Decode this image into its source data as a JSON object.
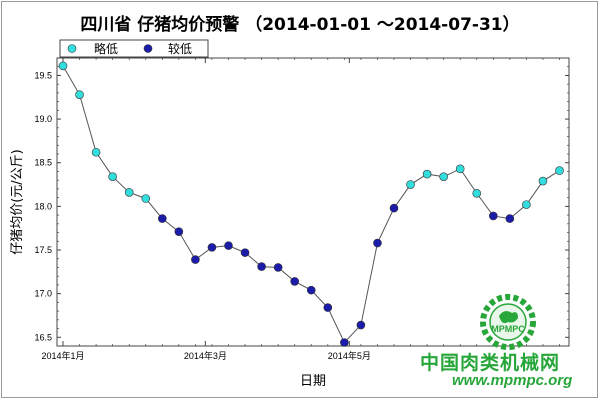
{
  "title": "四川省 仔猪均价预警 （2014-01-01 ～2014-07-31）",
  "watermark": {
    "text": "中国肉类机械网",
    "url": "www.mpmpc.org",
    "logo_text": "MPMPC",
    "color": "#27a63a"
  },
  "chart_data": {
    "type": "scatter",
    "title": "四川省 仔猪均价预警 （2014-01-01 ～2014-07-31）",
    "xlabel": "日期",
    "ylabel": "仔猪均价(元/公斤)",
    "ylim": [
      16.4,
      19.7
    ],
    "yticks": [
      16.5,
      17.0,
      17.5,
      18.0,
      18.5,
      19.0,
      19.5
    ],
    "ytick_labels": [
      "16.5",
      "17.0",
      "17.5",
      "18.0",
      "18.5",
      "19.0",
      "19.5"
    ],
    "xticks": [
      {
        "index": 0,
        "label": "2014年1月"
      },
      {
        "index": 8.6,
        "label": "2014年3月"
      },
      {
        "index": 17.3,
        "label": "2014年5月"
      }
    ],
    "x_count": 31,
    "grid": false,
    "legend": {
      "placement": "top-left",
      "entries": [
        {
          "label": "略低",
          "color": "#33dddd"
        },
        {
          "label": "较低",
          "color": "#1c1caa"
        }
      ]
    },
    "line_color": "#555555",
    "series": [
      {
        "values": [
          19.61,
          19.28,
          18.62,
          18.34,
          18.16,
          18.09,
          17.86,
          17.71,
          17.39,
          17.53,
          17.55,
          17.47,
          17.31,
          17.3,
          17.14,
          17.04,
          16.84,
          16.44,
          16.64,
          17.58,
          17.98,
          18.25,
          18.37,
          18.34,
          18.43,
          18.15,
          17.89,
          17.86,
          18.02,
          18.29,
          18.41
        ],
        "levels": [
          0,
          0,
          0,
          0,
          0,
          0,
          1,
          1,
          1,
          1,
          1,
          1,
          1,
          1,
          1,
          1,
          1,
          1,
          1,
          1,
          1,
          0,
          0,
          0,
          0,
          0,
          1,
          1,
          0,
          0,
          0
        ]
      }
    ]
  }
}
